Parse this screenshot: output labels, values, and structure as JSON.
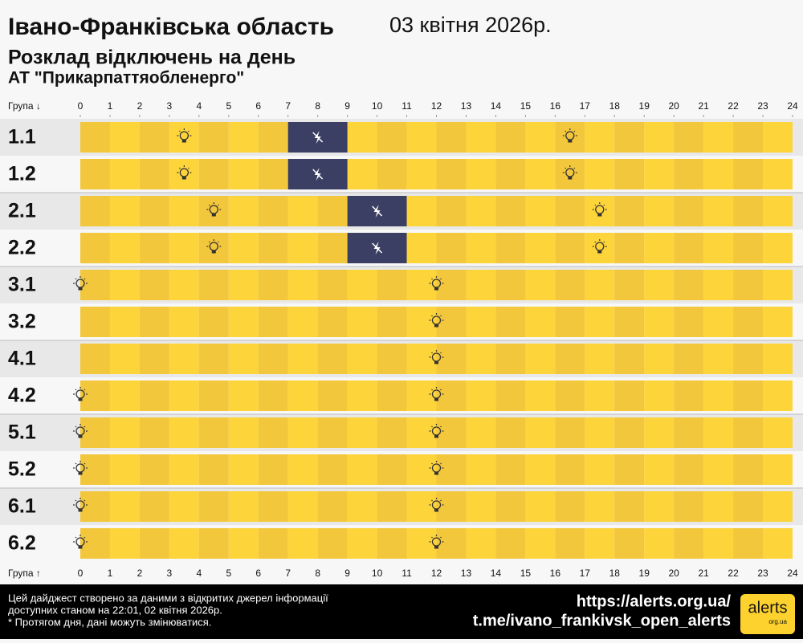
{
  "header": {
    "title": "Івано-Франківська область",
    "date": "03 квітня 2026р.",
    "subtitle": "Розклад відключень на день",
    "company": "АТ \"Прикарпаттяобленерго\""
  },
  "axis": {
    "label_top": "Група ↓",
    "label_bottom": "Група ↑",
    "hours": [
      0,
      1,
      2,
      3,
      4,
      5,
      6,
      7,
      8,
      9,
      10,
      11,
      12,
      13,
      14,
      15,
      16,
      17,
      18,
      19,
      20,
      21,
      22,
      23,
      24
    ]
  },
  "groups": [
    {
      "name": "1.1",
      "outages": [
        [
          7,
          9
        ]
      ],
      "bulbs": [
        3.5,
        16.5
      ]
    },
    {
      "name": "1.2",
      "outages": [
        [
          7,
          9
        ]
      ],
      "bulbs": [
        3.5,
        16.5
      ]
    },
    {
      "name": "2.1",
      "outages": [
        [
          9,
          11
        ]
      ],
      "bulbs": [
        4.5,
        17.5
      ]
    },
    {
      "name": "2.2",
      "outages": [
        [
          9,
          11
        ]
      ],
      "bulbs": [
        4.5,
        17.5
      ]
    },
    {
      "name": "3.1",
      "outages": [],
      "bulbs": [
        0,
        12
      ]
    },
    {
      "name": "3.2",
      "outages": [],
      "bulbs": [
        12
      ]
    },
    {
      "name": "4.1",
      "outages": [],
      "bulbs": [
        12
      ]
    },
    {
      "name": "4.2",
      "outages": [],
      "bulbs": [
        0,
        12
      ]
    },
    {
      "name": "5.1",
      "outages": [],
      "bulbs": [
        0,
        12
      ]
    },
    {
      "name": "5.2",
      "outages": [],
      "bulbs": [
        0,
        12
      ]
    },
    {
      "name": "6.1",
      "outages": [],
      "bulbs": [
        0,
        12
      ]
    },
    {
      "name": "6.2",
      "outages": [],
      "bulbs": [
        0,
        12
      ]
    }
  ],
  "footer": {
    "note": [
      "Цей дайджест створено за даними з відкритих джерел інформації",
      "доступних станом на 22:01, 02 квітня 2026р.",
      "* Протягом дня, дані можуть змінюватися."
    ],
    "links": [
      "https://alerts.org.ua/",
      "t.me/ivano_frankivsk_open_alerts"
    ],
    "logo": "alerts",
    "logo_sub": "org.ua"
  }
}
